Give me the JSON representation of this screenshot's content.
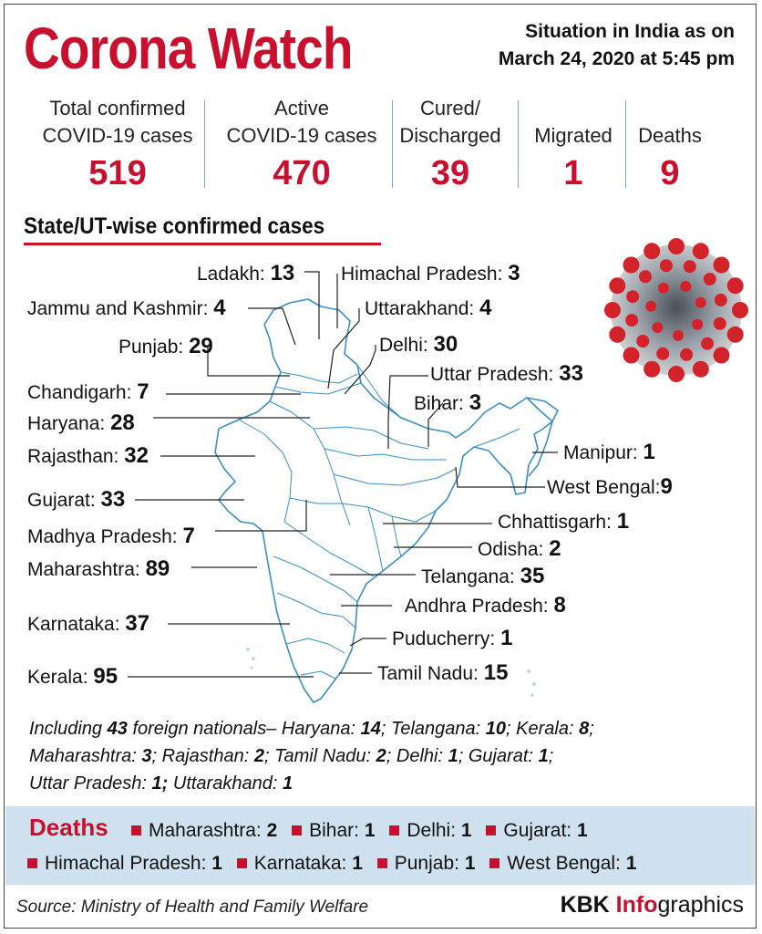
{
  "header": {
    "title": "Corona Watch",
    "situation_line1": "Situation in India as on",
    "situation_line2": "March 24, 2020 at 5:45 pm"
  },
  "stats": [
    {
      "label_line1": "Total confirmed",
      "label_line2": "COVID-19 cases",
      "value": "519"
    },
    {
      "label_line1": "Active",
      "label_line2": "COVID-19 cases",
      "value": "470"
    },
    {
      "label_line1": "Cured/",
      "label_line2": "Discharged",
      "value": "39"
    },
    {
      "label_line1": "",
      "label_line2": "Migrated",
      "value": "1"
    },
    {
      "label_line1": "",
      "label_line2": "Deaths",
      "value": "9"
    }
  ],
  "section_title": "State/UT-wise confirmed cases",
  "states": [
    {
      "name": "Ladakh:",
      "value": "13"
    },
    {
      "name": "Himachal Pradesh:",
      "value": "3"
    },
    {
      "name": "Jammu and Kashmir:",
      "value": "4"
    },
    {
      "name": "Uttarakhand:",
      "value": "4"
    },
    {
      "name": "Punjab:",
      "value": "29"
    },
    {
      "name": "Delhi:",
      "value": "30"
    },
    {
      "name": "Uttar Pradesh:",
      "value": "33"
    },
    {
      "name": "Chandigarh:",
      "value": "7"
    },
    {
      "name": "Bihar:",
      "value": "3"
    },
    {
      "name": "Haryana:",
      "value": "28"
    },
    {
      "name": "Rajasthan:",
      "value": "32"
    },
    {
      "name": "Manipur:",
      "value": "1"
    },
    {
      "name": "West Bengal:",
      "value": "9"
    },
    {
      "name": "Gujarat:",
      "value": "33"
    },
    {
      "name": "Chhattisgarh:",
      "value": "1"
    },
    {
      "name": "Madhya Pradesh:",
      "value": "7"
    },
    {
      "name": "Odisha:",
      "value": "2"
    },
    {
      "name": "Maharashtra:",
      "value": "89"
    },
    {
      "name": "Telangana:",
      "value": "35"
    },
    {
      "name": "Andhra Pradesh:",
      "value": "8"
    },
    {
      "name": "Karnataka:",
      "value": "37"
    },
    {
      "name": "Puducherry:",
      "value": "1"
    },
    {
      "name": "Tamil Nadu:",
      "value": "15"
    },
    {
      "name": "Kerala:",
      "value": "95"
    }
  ],
  "foreign": {
    "prefix": "Including",
    "count": "43",
    "text": "foreign nationals–",
    "items": [
      {
        "name": "Haryana:",
        "value": "14"
      },
      {
        "name": "Telangana:",
        "value": "10"
      },
      {
        "name": "Kerala:",
        "value": "8"
      },
      {
        "name": "Maharashtra:",
        "value": "3"
      },
      {
        "name": "Rajasthan:",
        "value": "2"
      },
      {
        "name": "Tamil Nadu:",
        "value": "2"
      },
      {
        "name": "Delhi:",
        "value": "1"
      },
      {
        "name": "Gujarat:",
        "value": "1"
      },
      {
        "name": "Uttar Pradesh:",
        "value": "1;"
      },
      {
        "name": "Uttarakhand:",
        "value": "1"
      }
    ]
  },
  "deaths": {
    "title": "Deaths",
    "items": [
      {
        "name": "Maharashtra:",
        "value": "2"
      },
      {
        "name": "Bihar:",
        "value": "1"
      },
      {
        "name": "Delhi:",
        "value": "1"
      },
      {
        "name": "Gujarat:",
        "value": "1"
      },
      {
        "name": "Himachal Pradesh:",
        "value": "1"
      },
      {
        "name": "Karnataka:",
        "value": "1"
      },
      {
        "name": "Punjab:",
        "value": "1"
      },
      {
        "name": "West Bengal:",
        "value": "1"
      }
    ]
  },
  "footer": {
    "source": "Source: Ministry of Health and Family Welfare",
    "brand_k": "KBK ",
    "brand_i": "Info",
    "brand_g": "graphics"
  },
  "colors": {
    "accent": "#c8102e",
    "map_line": "#3a8fc2",
    "deaths_bg": "#cfe0ef"
  },
  "icons": [
    "coronavirus-illustration",
    "india-map"
  ]
}
